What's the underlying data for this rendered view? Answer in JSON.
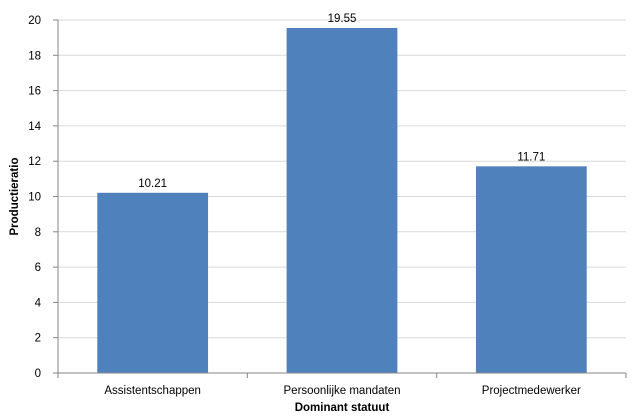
{
  "chart_data": {
    "type": "bar",
    "title": "",
    "xlabel": "Dominant statuut",
    "ylabel": "Productieratio",
    "categories": [
      "Assistentschappen",
      "Persoonlijke mandaten",
      "Projectmedewerker"
    ],
    "values": [
      10.21,
      19.55,
      11.71
    ],
    "data_labels": [
      "10.21",
      "19.55",
      "11.71"
    ],
    "ylim": [
      0,
      20
    ],
    "yticks": [
      0,
      2,
      4,
      6,
      8,
      10,
      12,
      14,
      16,
      18,
      20
    ],
    "grid": true,
    "legend": "none",
    "colors": {
      "bar": "#4f81bd",
      "grid": "#d9d9d9",
      "axis": "#868686"
    }
  }
}
